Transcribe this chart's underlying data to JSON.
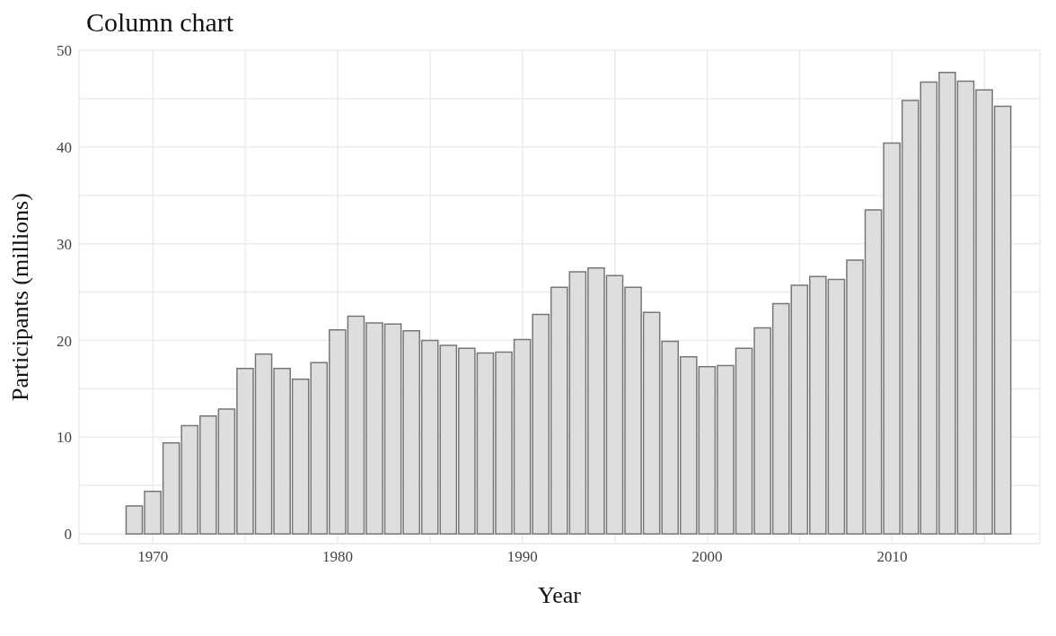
{
  "chart_data": {
    "type": "bar",
    "title": "Column chart",
    "xlabel": "Year",
    "ylabel": "Participants (millions)",
    "x": [
      1969,
      1970,
      1971,
      1972,
      1973,
      1974,
      1975,
      1976,
      1977,
      1978,
      1979,
      1980,
      1981,
      1982,
      1983,
      1984,
      1985,
      1986,
      1987,
      1988,
      1989,
      1990,
      1991,
      1992,
      1993,
      1994,
      1995,
      1996,
      1997,
      1998,
      1999,
      2000,
      2001,
      2002,
      2003,
      2004,
      2005,
      2006,
      2007,
      2008,
      2009,
      2010,
      2011,
      2012,
      2013,
      2014,
      2015,
      2016
    ],
    "values": [
      2.9,
      4.4,
      9.4,
      11.2,
      12.2,
      12.9,
      17.1,
      18.6,
      17.1,
      16.0,
      17.7,
      21.1,
      22.5,
      21.8,
      21.7,
      21.0,
      20.0,
      19.5,
      19.2,
      18.7,
      18.8,
      20.1,
      22.7,
      25.5,
      27.1,
      27.5,
      26.7,
      25.5,
      22.9,
      19.9,
      18.3,
      17.3,
      17.4,
      19.2,
      21.3,
      23.8,
      25.7,
      26.6,
      26.3,
      28.3,
      33.5,
      40.4,
      44.8,
      46.7,
      47.7,
      46.8,
      45.9,
      44.2
    ],
    "color": "#dedede",
    "xlim": [
      1966,
      2018
    ],
    "xticks": [
      1970,
      {
        "value": 1975,
        "label": null
      },
      1980,
      {
        "value": 1985,
        "label": null
      },
      1990,
      {
        "value": 1995,
        "label": null
      },
      2000,
      {
        "value": 2005,
        "label": null
      },
      2010,
      {
        "value": 2015,
        "label": null
      }
    ],
    "ylim": [
      -1,
      50
    ],
    "yticks": [
      0,
      {
        "value": 5,
        "label": null
      },
      10,
      {
        "value": 15,
        "label": null
      },
      20,
      {
        "value": 25,
        "label": null
      },
      30,
      {
        "value": 35,
        "label": null
      },
      40,
      {
        "value": 45,
        "label": null
      },
      50
    ],
    "grid": true
  }
}
